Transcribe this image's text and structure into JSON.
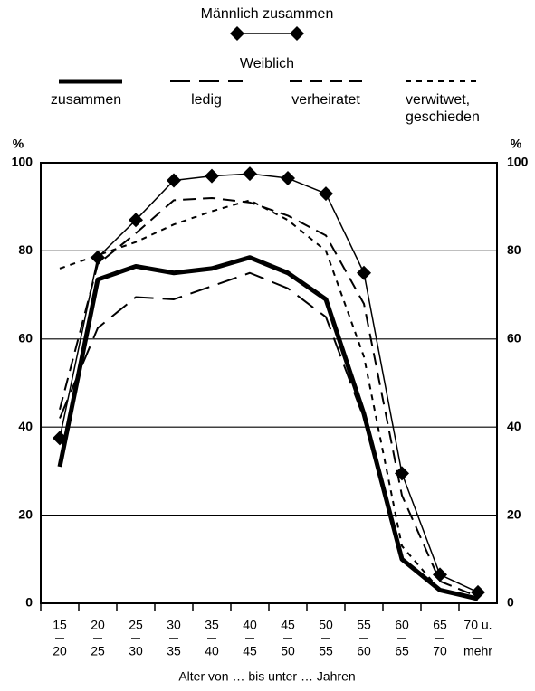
{
  "chart_data": {
    "type": "line",
    "legend_group": "Weiblich",
    "x_label": "Alter von … bis unter … Jahren",
    "y_unit": "%",
    "categories": [
      [
        "15",
        "20"
      ],
      [
        "20",
        "25"
      ],
      [
        "25",
        "30"
      ],
      [
        "30",
        "35"
      ],
      [
        "35",
        "40"
      ],
      [
        "40",
        "45"
      ],
      [
        "45",
        "50"
      ],
      [
        "50",
        "55"
      ],
      [
        "55",
        "60"
      ],
      [
        "60",
        "65"
      ],
      [
        "65",
        "70"
      ],
      [
        "70 u.",
        "mehr"
      ]
    ],
    "ylim": [
      0,
      100
    ],
    "yticks": [
      0,
      20,
      40,
      60,
      80,
      100
    ],
    "y2lim": [
      0,
      100
    ],
    "y2ticks": [
      0,
      20,
      40,
      60,
      80,
      100
    ],
    "grid": true,
    "series": [
      {
        "name": "Männlich zusammen",
        "color": "#000000",
        "width": 1.5,
        "dash": "",
        "marker": "diamond",
        "values": [
          37.5,
          78.5,
          87,
          96,
          97,
          97.5,
          96.5,
          93,
          75,
          29.5,
          6.5,
          2.5
        ]
      },
      {
        "name": "zusammen",
        "color": "#000000",
        "width": 5,
        "dash": "",
        "values": [
          31,
          73.5,
          76.5,
          75,
          76,
          78.5,
          75,
          69,
          43,
          10,
          3,
          1
        ]
      },
      {
        "name": "ledig",
        "color": "#000000",
        "width": 2,
        "dash": "22 10",
        "values": [
          42,
          62.5,
          69.5,
          69,
          72,
          75,
          71.5,
          65,
          42,
          10,
          3,
          1
        ]
      },
      {
        "name": "verheiratet",
        "color": "#000000",
        "width": 2,
        "dash": "14 8",
        "values": [
          44,
          77,
          84,
          91.5,
          92,
          91,
          88,
          83.5,
          68,
          24.5,
          5,
          1.5
        ]
      },
      {
        "name": "verwitwet, geschieden",
        "color": "#000000",
        "width": 2,
        "dash": "6 6",
        "values": [
          76,
          79,
          82,
          86,
          89,
          91.5,
          87,
          80,
          56,
          13,
          3,
          1
        ]
      }
    ]
  }
}
